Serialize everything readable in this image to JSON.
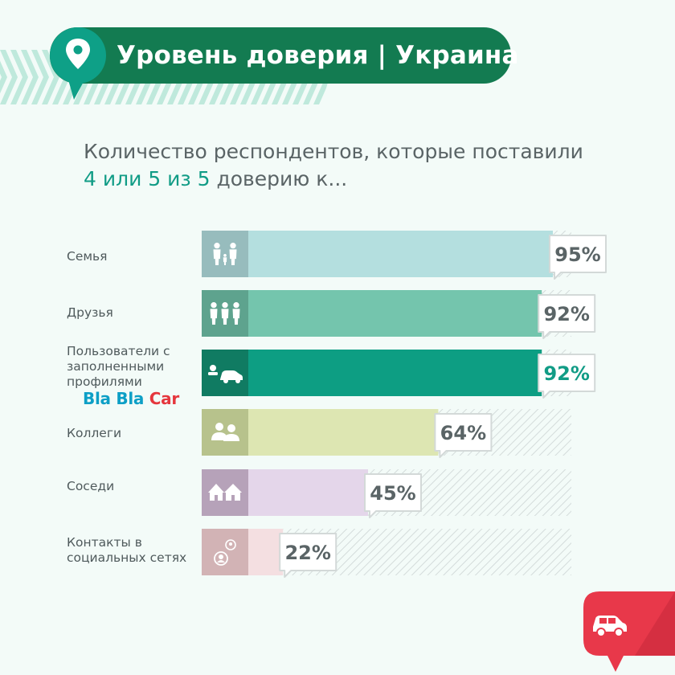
{
  "header": {
    "title": "Уровень доверия | Украина",
    "pin_icon": "location-pin-icon"
  },
  "subtitle": {
    "line1": "Количество респондентов, которые поставили",
    "highlight": "4 или 5 из 5",
    "rest": " доверию к..."
  },
  "logo": {
    "bla1": "Bla",
    "bla2": "Bla",
    "car": "Car"
  },
  "colors": {
    "header": "#137b51",
    "accent": "#119c86",
    "brand_red": "#e5363d",
    "brand_blue": "#0d9fc6"
  },
  "chart_data": {
    "type": "bar",
    "orientation": "horizontal",
    "xlim": [
      0,
      100
    ],
    "categories": [
      "Семья",
      "Друзья",
      "Пользователи с заполненными профилями",
      "Коллеги",
      "Соседи",
      "Контакты в социальных сетях"
    ],
    "values": [
      95,
      92,
      92,
      64,
      45,
      22
    ],
    "value_labels": [
      "95%",
      "92%",
      "92%",
      "64%",
      "45%",
      "22%"
    ],
    "icons": [
      "family-icon",
      "friends-icon",
      "driver-profile-icon",
      "colleagues-icon",
      "houses-icon",
      "social-contacts-icon"
    ],
    "bar_colors": [
      "#b4dfdf",
      "#74c5ad",
      "#0d9e83",
      "#dde6b2",
      "#e4d6ea",
      "#f4dfe1"
    ],
    "icon_colors": [
      "#97bcbd",
      "#5ea38e",
      "#107b62",
      "#b7c28c",
      "#b6a2b9",
      "#d2b3b5"
    ],
    "label_colors": [
      "#5a6466",
      "#5a6466",
      "#119c86",
      "#5a6466",
      "#5a6466",
      "#5a6466"
    ]
  }
}
